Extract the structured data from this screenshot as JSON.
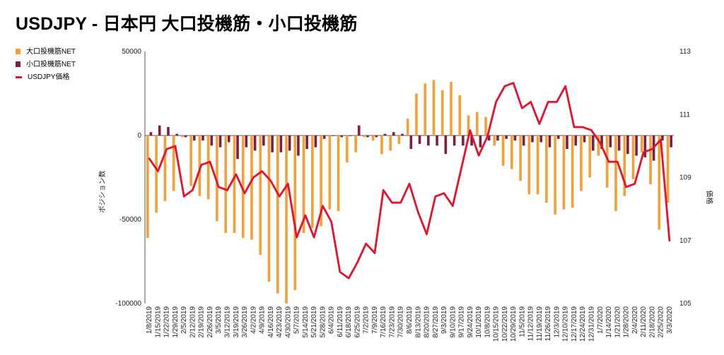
{
  "title": "USDJPY - 日本円 大口投機筋・小口投機筋",
  "legend": [
    {
      "label": "大口投機筋NET",
      "color": "#f5a034",
      "kind": "box"
    },
    {
      "label": "小口投機筋NET",
      "color": "#7b1f44",
      "kind": "box"
    },
    {
      "label": "USDJPY価格",
      "color": "#e8102a",
      "kind": "line"
    }
  ],
  "chart_data": {
    "type": "bar+line",
    "title": "USDJPY - 日本円 大口投機筋・小口投機筋",
    "ylabel_left": "ポジション数",
    "ylabel_right": "価格",
    "ylim_left": [
      -100000,
      50000
    ],
    "ylim_right": [
      105,
      113
    ],
    "left_ticks": [
      {
        "value": 50000,
        "label": "50000"
      },
      {
        "value": 0,
        "label": "0"
      },
      {
        "value": -50000,
        "label": "-50000"
      },
      {
        "value": -100000,
        "label": "-100000"
      }
    ],
    "right_ticks": [
      {
        "value": 113,
        "label": "113"
      },
      {
        "value": 111,
        "label": "111"
      },
      {
        "value": 109,
        "label": "109"
      },
      {
        "value": 107,
        "label": "107"
      },
      {
        "value": 105,
        "label": "105"
      }
    ],
    "categories": [
      "1/8/2019",
      "1/15/2019",
      "1/22/2019",
      "1/29/2019",
      "2/5/2019",
      "2/12/2019",
      "2/19/2019",
      "2/26/2019",
      "3/5/2019",
      "3/12/2019",
      "3/19/2019",
      "3/26/2019",
      "4/2/2019",
      "4/9/2019",
      "4/16/2019",
      "4/23/2019",
      "4/30/2019",
      "5/7/2019",
      "5/14/2019",
      "5/21/2019",
      "5/28/2019",
      "6/4/2019",
      "6/11/2019",
      "6/18/2019",
      "6/25/2019",
      "7/2/2019",
      "7/9/2019",
      "7/16/2019",
      "7/23/2019",
      "7/30/2019",
      "8/6/2019",
      "8/13/2019",
      "8/20/2019",
      "8/27/2019",
      "9/3/2019",
      "9/10/2019",
      "9/17/2019",
      "9/24/2019",
      "10/1/2019",
      "10/8/2019",
      "10/15/2019",
      "10/22/2019",
      "10/29/2019",
      "11/5/2019",
      "11/12/2019",
      "11/19/2019",
      "11/26/2019",
      "12/3/2019",
      "12/10/2019",
      "12/17/2019",
      "12/24/2019",
      "12/31/2019",
      "1/7/2020",
      "1/14/2020",
      "1/21/2020",
      "1/28/2020",
      "2/4/2020",
      "2/11/2020",
      "2/18/2020",
      "2/25/2020",
      "3/3/2020"
    ],
    "series": [
      {
        "name": "大口投機筋NET",
        "type": "bar",
        "axis": "left",
        "color": "#f5a034",
        "values": [
          -61000,
          -46000,
          -39000,
          -33000,
          -1000,
          -30000,
          -36000,
          -38000,
          -51000,
          -58000,
          -58000,
          -61000,
          -62000,
          -71000,
          -87000,
          -94000,
          -100000,
          -92000,
          -58000,
          -55000,
          -54000,
          -44000,
          -45000,
          -16000,
          -10000,
          -1000,
          -3000,
          -11000,
          -9000,
          -5000,
          10000,
          25000,
          31000,
          33000,
          27000,
          32000,
          24000,
          12000,
          14000,
          11000,
          -6000,
          -18000,
          -20000,
          -27000,
          -35000,
          -35000,
          -40000,
          -47000,
          -44000,
          -43000,
          -33000,
          -25000,
          -12000,
          -31000,
          -45000,
          -36000,
          -26000,
          -10000,
          -29000,
          -56000,
          -40000
        ]
      },
      {
        "name": "小口投機筋NET",
        "type": "bar",
        "axis": "left",
        "color": "#7b1f44",
        "values": [
          2000,
          6000,
          5000,
          1000,
          -1000,
          -3000,
          -3000,
          -6000,
          -7000,
          -4000,
          -14000,
          -7000,
          -9000,
          -6000,
          -10000,
          -10000,
          -9000,
          -12000,
          -8000,
          -7000,
          -2000,
          0,
          -1000,
          0,
          6000,
          -1000,
          -1000,
          1000,
          2000,
          1000,
          -8000,
          -5000,
          -6000,
          -6000,
          -11000,
          -6000,
          -6000,
          -6000,
          -7000,
          -3000,
          -3000,
          -2000,
          -3000,
          -6000,
          -4000,
          -4000,
          -7000,
          -2000,
          -8000,
          -6000,
          -4000,
          -9000,
          -8000,
          -7000,
          -9000,
          -11000,
          -12000,
          -13000,
          -15000,
          -3000,
          -7000
        ]
      },
      {
        "name": "USDJPY価格",
        "type": "line",
        "axis": "right",
        "color": "#e8102a",
        "values": [
          109.6,
          109.2,
          109.9,
          110.0,
          108.4,
          108.6,
          109.4,
          109.5,
          108.7,
          108.6,
          109.1,
          108.5,
          109.0,
          109.2,
          108.9,
          108.4,
          108.8,
          107.1,
          107.8,
          107.1,
          108.1,
          107.6,
          106.0,
          105.8,
          106.3,
          106.9,
          106.6,
          108.6,
          108.2,
          108.2,
          108.8,
          107.9,
          107.2,
          108.4,
          108.5,
          108.1,
          109.3,
          110.5,
          109.7,
          110.3,
          111.4,
          111.9,
          112.0,
          111.2,
          111.4,
          110.7,
          111.4,
          111.4,
          111.9,
          110.6,
          110.6,
          110.5,
          110.1,
          109.5,
          109.5,
          108.7,
          108.8,
          109.8,
          109.9,
          110.2,
          107.0
        ]
      }
    ]
  }
}
